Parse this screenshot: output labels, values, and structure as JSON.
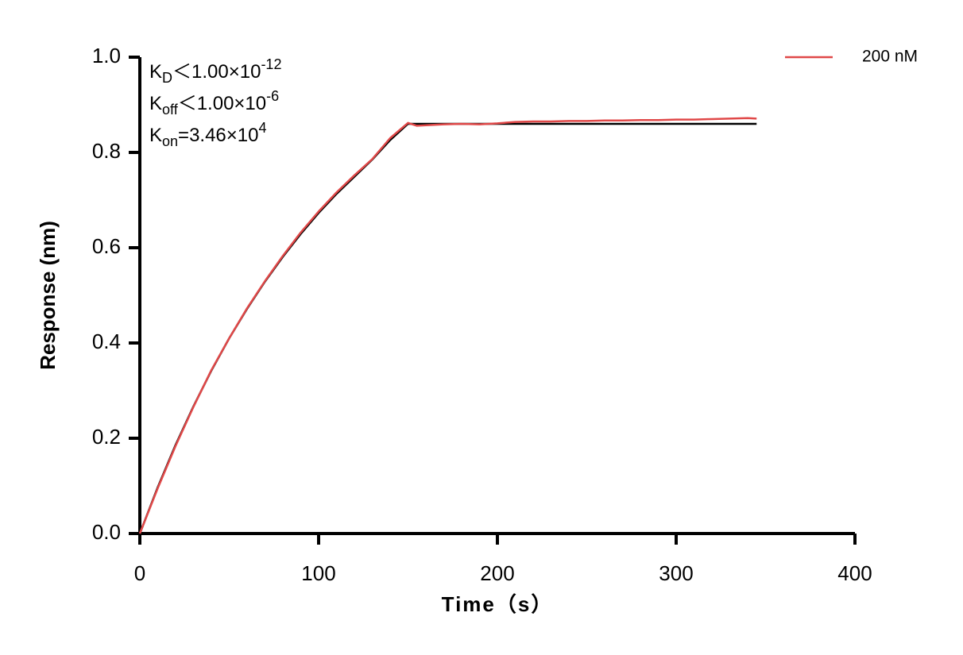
{
  "chart_data": {
    "type": "line",
    "xlabel": "Time（s）",
    "ylabel": "Response (nm)",
    "xlim": [
      0,
      400
    ],
    "xticks": [
      0,
      100,
      200,
      300,
      400
    ],
    "ylim": [
      0,
      1
    ],
    "yticks": [
      {
        "value": 0,
        "label": "0.0"
      },
      {
        "value": 0.2,
        "label": "0.2"
      },
      {
        "value": 0.4,
        "label": "0.4"
      },
      {
        "value": 0.6,
        "label": "0.6"
      },
      {
        "value": 0.8,
        "label": "0.8"
      },
      {
        "value": 1,
        "label": "1.0"
      }
    ],
    "legend": "top-right",
    "annotations": [
      {
        "base": "K",
        "sub": "D",
        "text": "＜1.00×10",
        "sup": "-12"
      },
      {
        "base": "K",
        "sub": "off",
        "text": "＜1.00×10",
        "sup": "-6"
      },
      {
        "base": "K",
        "sub": "on",
        "text": "=3.46×10",
        "sup": "4"
      }
    ],
    "series": [
      {
        "name": "200 nM",
        "color": "#e04848",
        "x": [
          0,
          10,
          20,
          30,
          40,
          50,
          60,
          70,
          80,
          90,
          100,
          110,
          120,
          130,
          140,
          150,
          155,
          160,
          170,
          180,
          190,
          200,
          210,
          220,
          230,
          240,
          250,
          260,
          270,
          280,
          290,
          300,
          310,
          320,
          330,
          340,
          345
        ],
        "values": [
          0,
          0.095,
          0.184,
          0.266,
          0.343,
          0.41,
          0.473,
          0.53,
          0.583,
          0.632,
          0.676,
          0.716,
          0.752,
          0.786,
          0.83,
          0.862,
          0.856,
          0.857,
          0.859,
          0.86,
          0.859,
          0.861,
          0.864,
          0.865,
          0.865,
          0.866,
          0.866,
          0.867,
          0.867,
          0.868,
          0.868,
          0.869,
          0.869,
          0.87,
          0.871,
          0.872,
          0.871
        ]
      }
    ],
    "fit": {
      "color": "#000000",
      "x": [
        0,
        10,
        20,
        30,
        40,
        50,
        60,
        70,
        80,
        90,
        100,
        110,
        120,
        130,
        140,
        150,
        345
      ],
      "values": [
        0,
        0.097,
        0.186,
        0.267,
        0.342,
        0.41,
        0.472,
        0.529,
        0.581,
        0.629,
        0.673,
        0.713,
        0.749,
        0.785,
        0.826,
        0.86,
        0.86
      ]
    }
  }
}
